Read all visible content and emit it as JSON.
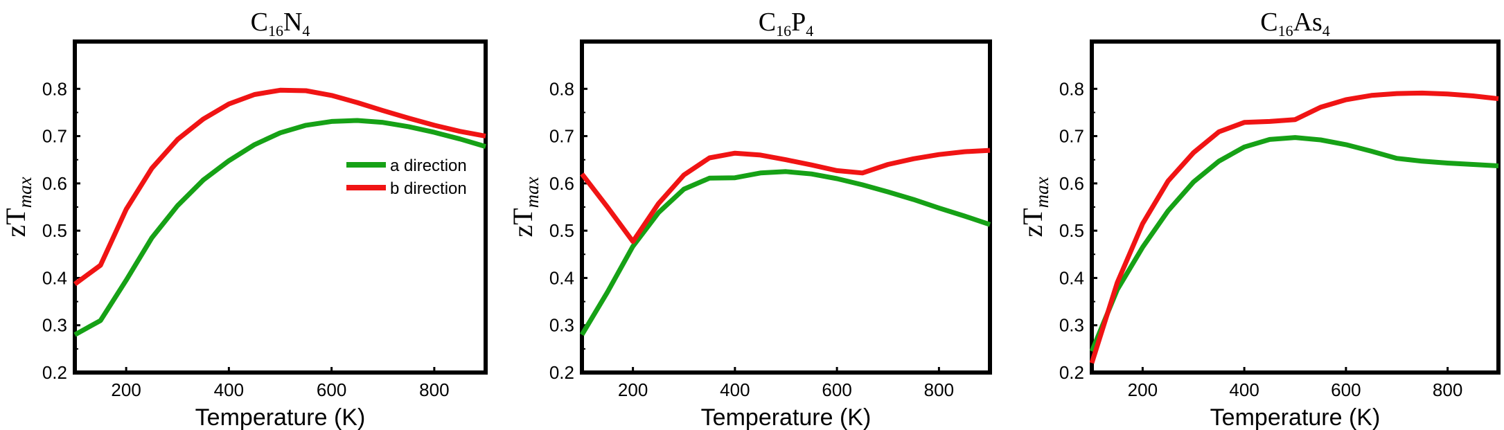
{
  "chart_data": [
    {
      "type": "line",
      "title": {
        "base": "C",
        "sub1": "16",
        "mid": "N",
        "sub2": "4"
      },
      "xlabel": "Temperature (K)",
      "ylabel": {
        "base": "zT",
        "sub": "max"
      },
      "xlim": [
        100,
        900
      ],
      "ylim": [
        0.2,
        0.9
      ],
      "xticks": [
        200,
        400,
        600,
        800
      ],
      "yticks": [
        0.2,
        0.3,
        0.4,
        0.5,
        0.6,
        0.7,
        0.8
      ],
      "grid": false,
      "legend": "right",
      "x": [
        100,
        150,
        200,
        250,
        300,
        350,
        400,
        450,
        500,
        550,
        600,
        650,
        700,
        750,
        800,
        850,
        900
      ],
      "series": [
        {
          "name": "a direction",
          "color": "#16a116",
          "values": [
            0.28,
            0.31,
            0.395,
            0.485,
            0.553,
            0.607,
            0.648,
            0.682,
            0.707,
            0.723,
            0.731,
            0.733,
            0.729,
            0.72,
            0.708,
            0.694,
            0.678
          ]
        },
        {
          "name": "b direction",
          "color": "#f01414",
          "values": [
            0.387,
            0.427,
            0.545,
            0.632,
            0.693,
            0.736,
            0.768,
            0.788,
            0.797,
            0.796,
            0.786,
            0.771,
            0.754,
            0.738,
            0.723,
            0.71,
            0.7
          ]
        }
      ]
    },
    {
      "type": "line",
      "title": {
        "base": "C",
        "sub1": "16",
        "mid": "P",
        "sub2": "4"
      },
      "xlabel": "Temperature (K)",
      "ylabel": {
        "base": "zT",
        "sub": "max"
      },
      "xlim": [
        100,
        900
      ],
      "ylim": [
        0.2,
        0.9
      ],
      "xticks": [
        200,
        400,
        600,
        800
      ],
      "yticks": [
        0.2,
        0.3,
        0.4,
        0.5,
        0.6,
        0.7,
        0.8
      ],
      "grid": false,
      "x": [
        100,
        150,
        200,
        250,
        300,
        350,
        400,
        450,
        500,
        550,
        600,
        650,
        700,
        750,
        800,
        850,
        900
      ],
      "series": [
        {
          "color": "#16a116",
          "values": [
            0.28,
            0.37,
            0.467,
            0.538,
            0.588,
            0.611,
            0.612,
            0.622,
            0.625,
            0.62,
            0.61,
            0.597,
            0.582,
            0.566,
            0.548,
            0.531,
            0.513
          ]
        },
        {
          "color": "#f01414",
          "values": [
            0.62,
            0.55,
            0.477,
            0.557,
            0.618,
            0.654,
            0.664,
            0.66,
            0.65,
            0.639,
            0.627,
            0.622,
            0.64,
            0.652,
            0.661,
            0.667,
            0.67
          ]
        }
      ]
    },
    {
      "type": "line",
      "title": {
        "base": "C",
        "sub1": "16",
        "mid": "As",
        "sub2": "4"
      },
      "xlabel": "Temperature (K)",
      "ylabel": {
        "base": "zT",
        "sub": "max"
      },
      "xlim": [
        100,
        900
      ],
      "ylim": [
        0.2,
        0.9
      ],
      "xticks": [
        200,
        400,
        600,
        800
      ],
      "yticks": [
        0.2,
        0.3,
        0.4,
        0.5,
        0.6,
        0.7,
        0.8
      ],
      "grid": false,
      "x": [
        100,
        150,
        200,
        250,
        300,
        350,
        400,
        450,
        500,
        550,
        600,
        650,
        700,
        750,
        800,
        850,
        900
      ],
      "series": [
        {
          "color": "#16a116",
          "values": [
            0.245,
            0.375,
            0.465,
            0.542,
            0.603,
            0.647,
            0.677,
            0.693,
            0.697,
            0.692,
            0.682,
            0.668,
            0.653,
            0.647,
            0.643,
            0.64,
            0.637
          ]
        },
        {
          "color": "#f01414",
          "values": [
            0.22,
            0.39,
            0.515,
            0.605,
            0.665,
            0.709,
            0.729,
            0.731,
            0.735,
            0.761,
            0.777,
            0.786,
            0.79,
            0.791,
            0.789,
            0.785,
            0.779
          ]
        }
      ]
    }
  ]
}
